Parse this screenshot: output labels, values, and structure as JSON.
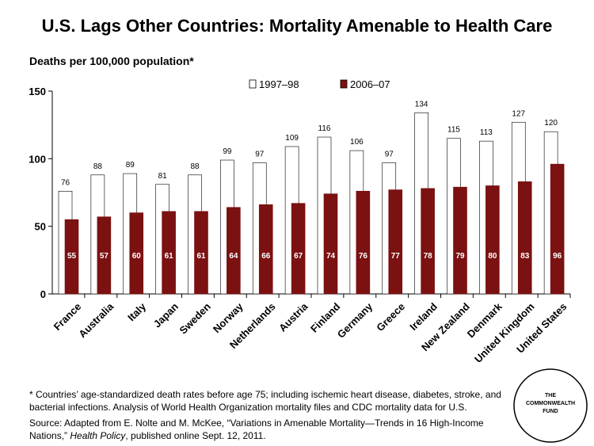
{
  "chart_data": {
    "type": "bar",
    "title": "U.S. Lags Other Countries: Mortality Amenable to Health Care",
    "y_label": "Deaths per 100,000 population*",
    "categories": [
      "France",
      "Australia",
      "Italy",
      "Japan",
      "Sweden",
      "Norway",
      "Netherlands",
      "Austria",
      "Finland",
      "Germany",
      "Greece",
      "Ireland",
      "New Zealand",
      "Denmark",
      "United Kingdom",
      "United States"
    ],
    "series": [
      {
        "name": "1997–98",
        "color": "#ffffff",
        "values": [
          76,
          88,
          89,
          81,
          88,
          99,
          97,
          109,
          116,
          106,
          97,
          134,
          115,
          113,
          127,
          120
        ]
      },
      {
        "name": "2006–07",
        "color": "#7b1111",
        "values": [
          55,
          57,
          60,
          61,
          61,
          64,
          66,
          67,
          74,
          76,
          77,
          78,
          79,
          80,
          83,
          96
        ]
      }
    ],
    "ylim": [
      0,
      150
    ],
    "yticks": [
      0,
      50,
      100,
      150
    ],
    "grid": false,
    "legend_position": "top"
  },
  "footnote": "* Countries’ age-standardized death rates before age 75; including ischemic heart disease, diabetes, stroke, and bacterial infections. Analysis of World Health Organization mortality files and CDC mortality data for U.S.",
  "source": {
    "before": "Source: Adapted from E. Nolte and M. McKee, “Variations in Amenable Mortality—Trends in 16 High-Income Nations,” ",
    "italic": "Health Policy",
    "after": ", published online Sept. 12, 2011."
  },
  "logo": [
    "THE",
    "COMMONWEALTH",
    "FUND"
  ]
}
